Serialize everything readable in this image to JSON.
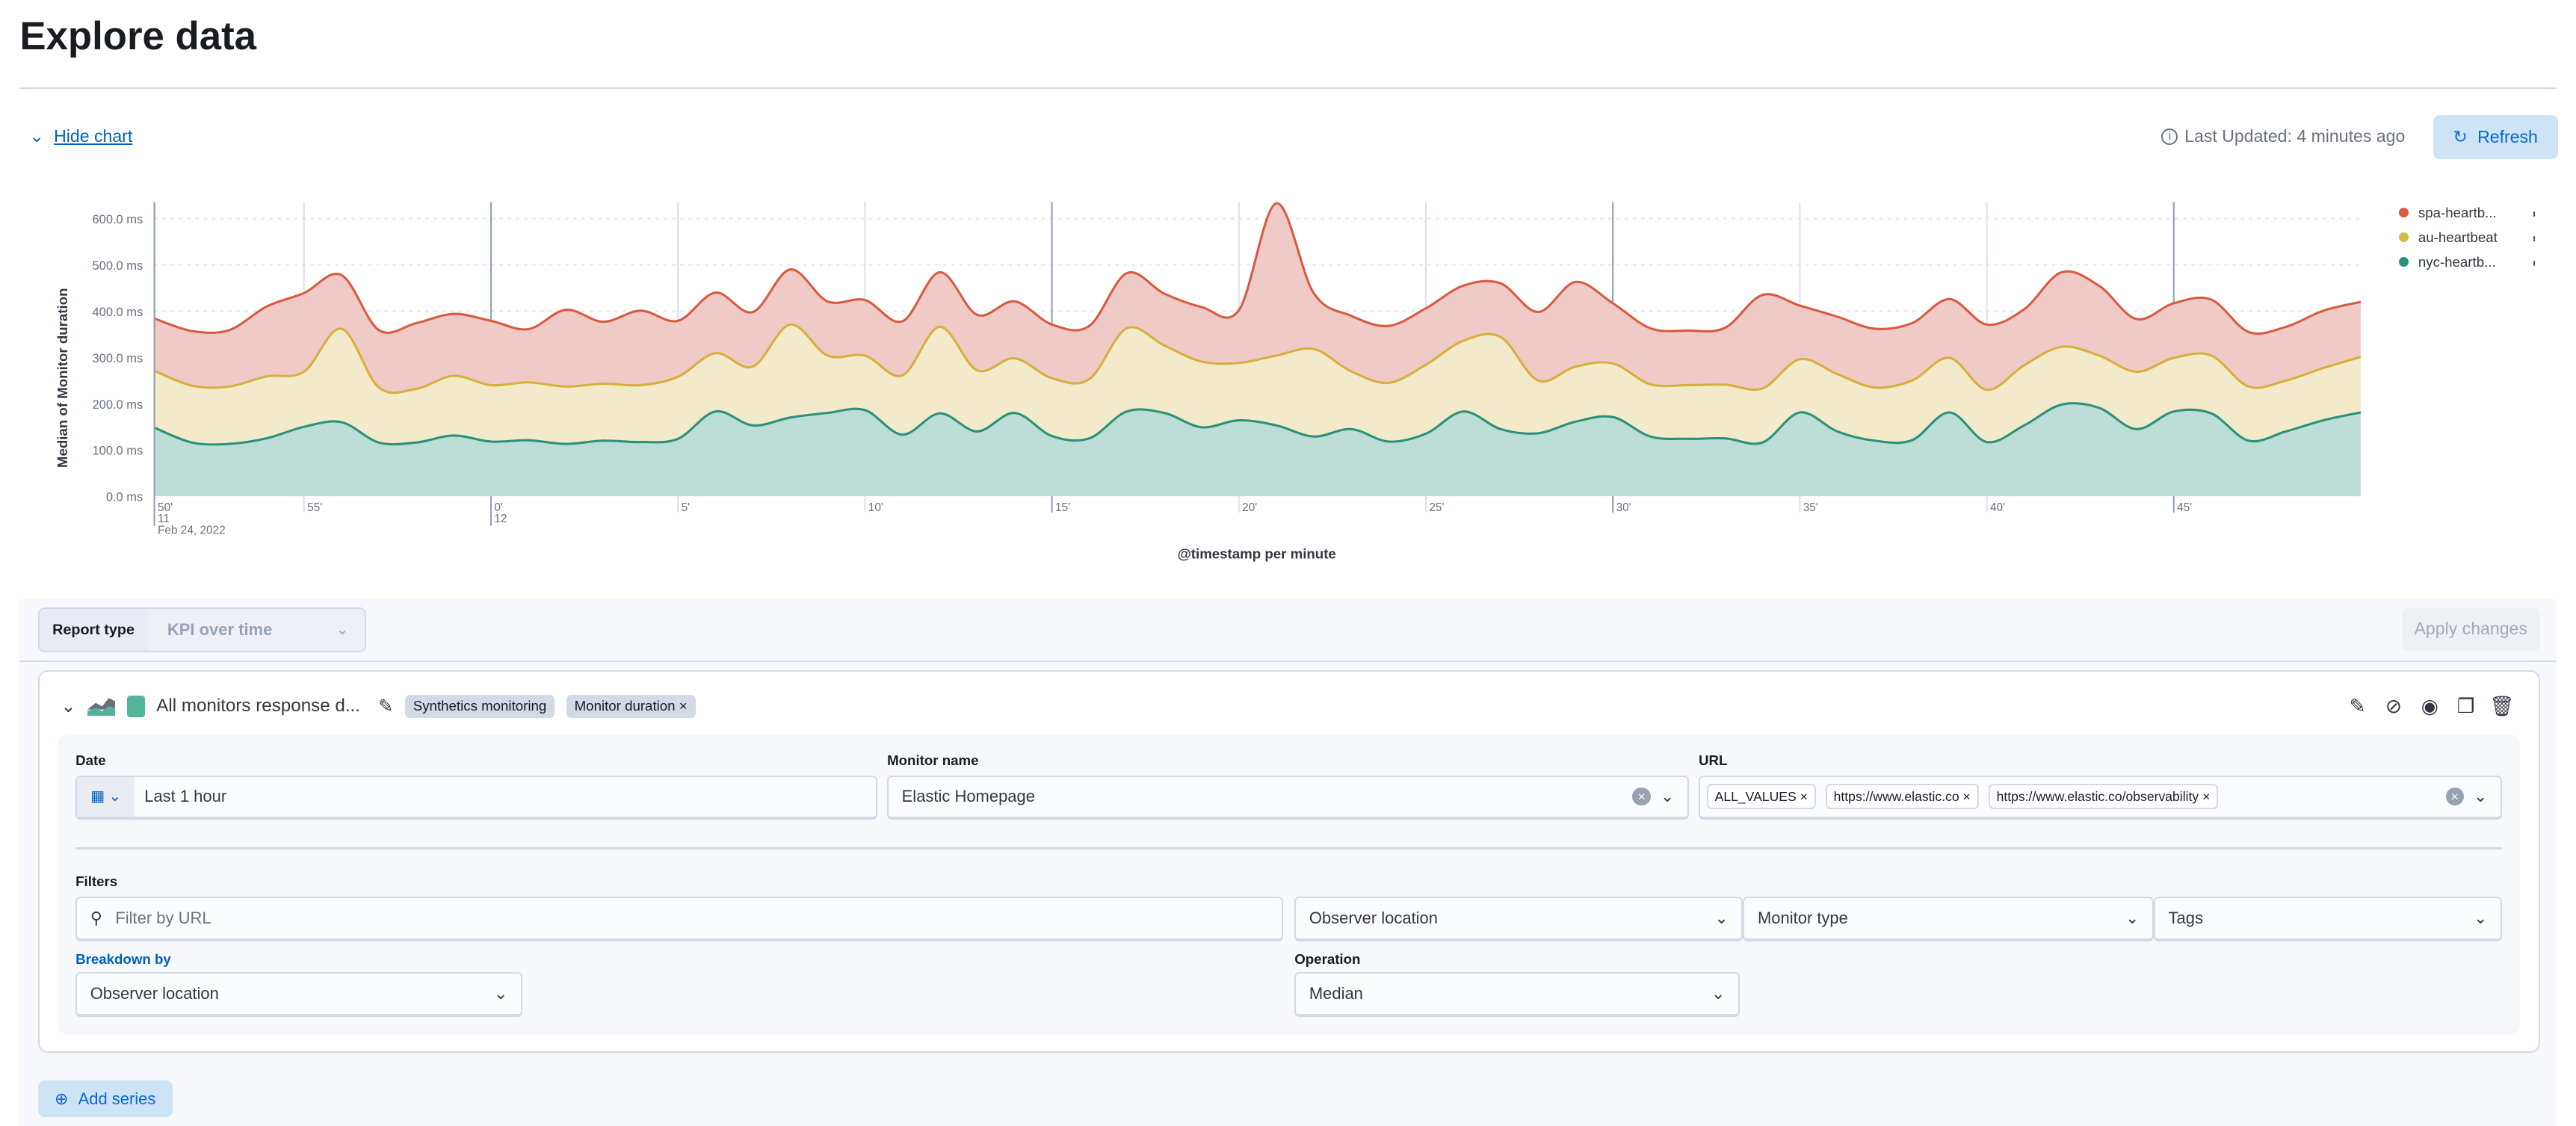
{
  "page": {
    "title": "Explore data",
    "hide_chart": "Hide chart",
    "last_updated": "Last Updated: 4 minutes ago",
    "refresh": "Refresh"
  },
  "legend": [
    {
      "label": "spa-heartb...",
      "color": "#d95a40"
    },
    {
      "label": "au-heartbeat",
      "color": "#d6b847"
    },
    {
      "label": "nyc-heartb...",
      "color": "#2a9278"
    }
  ],
  "chart_data": {
    "type": "area",
    "stacked": true,
    "ylabel": "Median of Monitor duration",
    "xlabel": "@timestamp per minute",
    "ylim": [
      0,
      620
    ],
    "y_ticks": [
      "0.0 ms",
      "100.0 ms",
      "200.0 ms",
      "300.0 ms",
      "400.0 ms",
      "500.0 ms",
      "600.0 ms"
    ],
    "y_tick_values": [
      0,
      100,
      200,
      300,
      400,
      500,
      600
    ],
    "grid": true,
    "legend_position": "right",
    "x_ticks": [
      {
        "at": "11:50",
        "label": "50'",
        "sub1": "11",
        "sub2": "Feb 24, 2022"
      },
      {
        "at": "11:55",
        "label": "55'"
      },
      {
        "at": "12:00",
        "label": "0'",
        "sub1": "12"
      },
      {
        "at": "12:05",
        "label": "5'"
      },
      {
        "at": "12:10",
        "label": "10'"
      },
      {
        "at": "12:15",
        "label": "15'"
      },
      {
        "at": "12:20",
        "label": "20'"
      },
      {
        "at": "12:25",
        "label": "25'"
      },
      {
        "at": "12:30",
        "label": "30'"
      },
      {
        "at": "12:35",
        "label": "35'"
      },
      {
        "at": "12:40",
        "label": "40'"
      },
      {
        "at": "12:45",
        "label": "45'"
      }
    ],
    "x": [
      "11:51",
      "11:52",
      "11:53",
      "11:54",
      "11:55",
      "11:56",
      "11:57",
      "11:58",
      "11:59",
      "12:00",
      "12:01",
      "12:02",
      "12:03",
      "12:04",
      "12:05",
      "12:06",
      "12:07",
      "12:08",
      "12:09",
      "12:10",
      "12:11",
      "12:12",
      "12:13",
      "12:14",
      "12:15",
      "12:16",
      "12:17",
      "12:18",
      "12:19",
      "12:20",
      "12:21",
      "12:22",
      "12:23",
      "12:24",
      "12:25",
      "12:26",
      "12:27",
      "12:28",
      "12:29",
      "12:30",
      "12:31",
      "12:32",
      "12:33",
      "12:34",
      "12:35",
      "12:36",
      "12:37",
      "12:38",
      "12:39",
      "12:40",
      "12:41",
      "12:42",
      "12:43",
      "12:44",
      "12:45",
      "12:46",
      "12:47",
      "12:48",
      "12:49",
      "12:50"
    ],
    "series": [
      {
        "name": "nyc-heartbeat",
        "color": "#2a9278",
        "fill": "#bcded7",
        "values": [
          148,
          116,
          113,
          125,
          150,
          160,
          116,
          116,
          131,
          118,
          121,
          113,
          120,
          117,
          124,
          183,
          153,
          170,
          180,
          186,
          133,
          179,
          140,
          180,
          130,
          125,
          183,
          180,
          149,
          164,
          153,
          129,
          145,
          118,
          135,
          183,
          145,
          136,
          161,
          171,
          129,
          124,
          125,
          116,
          181,
          140,
          120,
          121,
          181,
          117,
          153,
          198,
          191,
          145,
          183,
          179,
          120,
          140,
          164,
          181
        ]
      },
      {
        "name": "au-heartbeat",
        "color": "#d6b03c",
        "fill": "#f2eacb",
        "values": [
          123,
          123,
          124,
          134,
          119,
          202,
          119,
          116,
          129,
          122,
          125,
          124,
          123,
          123,
          134,
          126,
          127,
          201,
          124,
          118,
          128,
          187,
          132,
          118,
          125,
          128,
          180,
          146,
          142,
          124,
          151,
          189,
          125,
          127,
          149,
          153,
          199,
          114,
          119,
          116,
          113,
          116,
          116,
          117,
          115,
          124,
          115,
          129,
          118,
          113,
          130,
          125,
          113,
          124,
          116,
          125,
          117,
          110,
          113,
          120
        ]
      },
      {
        "name": "spa-heartbeat",
        "color": "#d95a40",
        "fill": "#efcac6",
        "values": [
          113,
          118,
          122,
          151,
          170,
          116,
          124,
          142,
          134,
          139,
          115,
          166,
          134,
          161,
          121,
          131,
          118,
          119,
          117,
          120,
          117,
          118,
          120,
          123,
          116,
          115,
          119,
          112,
          118,
          114,
          329,
          121,
          120,
          123,
          122,
          119,
          116,
          148,
          183,
          130,
          121,
          118,
          123,
          202,
          116,
          124,
          127,
          124,
          127,
          141,
          121,
          161,
          151,
          114,
          118,
          121,
          118,
          116,
          124,
          119
        ]
      }
    ]
  },
  "controls": {
    "report_type_label": "Report type",
    "report_type_value": "KPI over time",
    "apply": "Apply changes",
    "series_name": "All monitors response d...",
    "badge_data_type": "Synthetics monitoring",
    "badge_metric": "Monitor duration",
    "series_color": "#54b399",
    "date_label": "Date",
    "date_value": "Last 1 hour",
    "monitor_label": "Monitor name",
    "monitor_value": "Elastic Homepage",
    "url_label": "URL",
    "url_values": [
      "ALL_VALUES",
      "https://www.elastic.co",
      "https://www.elastic.co/observability"
    ],
    "filters_label": "Filters",
    "filter_placeholder": "Filter by URL",
    "filter_observer": "Observer location",
    "filter_monitor_type": "Monitor type",
    "filter_tags": "Tags",
    "breakdown_label": "Breakdown by",
    "breakdown_value": "Observer location",
    "operation_label": "Operation",
    "operation_value": "Median",
    "add_series": "Add series"
  }
}
